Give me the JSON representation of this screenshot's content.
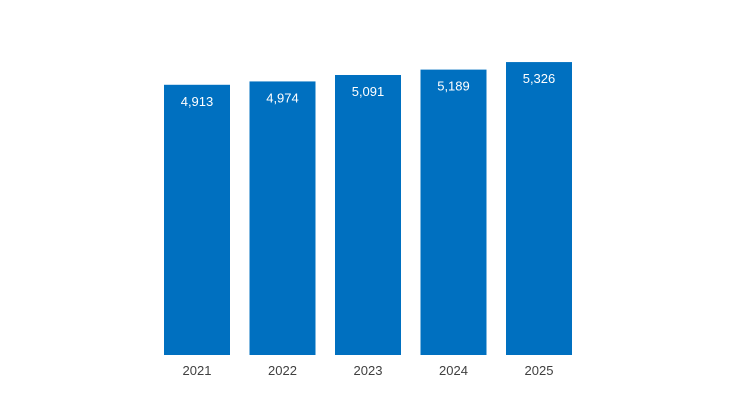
{
  "chart_data": {
    "type": "bar",
    "categories": [
      "2021",
      "2022",
      "2023",
      "2024",
      "2025"
    ],
    "values": [
      4913,
      4974,
      5091,
      5189,
      5326
    ],
    "value_labels": [
      "4,913",
      "4,974",
      "5,091",
      "5,189",
      "5,326"
    ],
    "title": "",
    "xlabel": "",
    "ylabel": "",
    "ylim": [
      0,
      5600
    ],
    "grid": false,
    "legend": "none",
    "colors": {
      "bar": "#0070C0",
      "label": "#FFFFFF",
      "tick": "#404040"
    }
  }
}
